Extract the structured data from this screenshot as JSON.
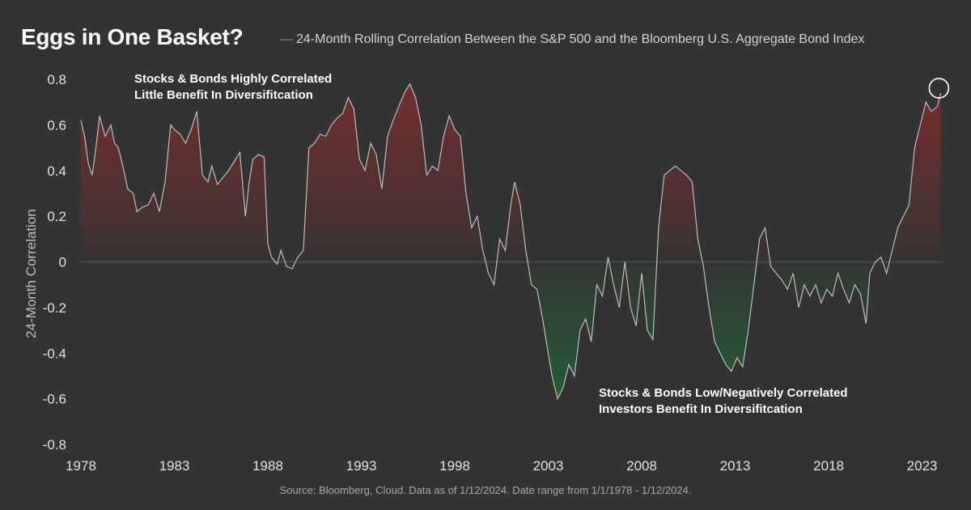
{
  "header": {
    "title": "Eggs in One Basket?",
    "subtitle_dash": "—",
    "subtitle": "24-Month Rolling Correlation Between the S&P 500 and the Bloomberg U.S. Aggregate Bond Index"
  },
  "footer": {
    "source": "Source: Bloomberg, Cloud. Data as of 1/12/2024. Date range from 1/1/1978 - 1/12/2024."
  },
  "colors": {
    "background": "#333333",
    "line": "#bdbdbd",
    "positive_fill": "#7a2e2c",
    "negative_fill": "#1e6b35",
    "zero_line": "#5a5a5a"
  },
  "chart_data": {
    "type": "area",
    "title": "24-Month Rolling Correlation Between the S&P 500 and the Bloomberg U.S. Aggregate Bond Index",
    "xlabel": "",
    "ylabel": "24-Month Correlation",
    "xlim": [
      1978.0,
      2024.1
    ],
    "ylim": [
      -0.8,
      0.8
    ],
    "xticks": [
      "1978",
      "1983",
      "1988",
      "1993",
      "1998",
      "2003",
      "2008",
      "2013",
      "2018",
      "2023"
    ],
    "yticks": [
      "0.8",
      "0.6",
      "0.4",
      "0.2",
      "0",
      "-0.2",
      "-0.4",
      "-0.6",
      "-0.8"
    ],
    "grid": false,
    "annotations": [
      {
        "lines": [
          "Stocks & Bonds Highly Correlated",
          "Little Benefit In Diversifitcation"
        ]
      },
      {
        "lines": [
          "Stocks & Bonds Low/Negatively Correlated",
          "Investors Benefit In Diversifitcation"
        ]
      }
    ],
    "highlight_point": {
      "x": 2023.9,
      "y": 0.74
    },
    "series": [
      {
        "x": [
          1978.0,
          1978.2,
          1978.4,
          1978.6,
          1978.8,
          1979.0,
          1979.3,
          1979.6,
          1979.8,
          1980.0,
          1980.3,
          1980.5,
          1980.8,
          1981.0,
          1981.3,
          1981.6,
          1981.9,
          1982.2,
          1982.5,
          1982.8,
          1983.0,
          1983.3,
          1983.6,
          1983.9,
          1984.2,
          1984.5,
          1984.8,
          1985.0,
          1985.3,
          1985.6,
          1985.9,
          1986.2,
          1986.5,
          1986.8,
          1987.0,
          1987.2,
          1987.5,
          1987.8,
          1988.0,
          1988.2,
          1988.5,
          1988.7,
          1989.0,
          1989.3,
          1989.6,
          1989.9,
          1990.2,
          1990.5,
          1990.8,
          1991.1,
          1991.4,
          1991.7,
          1992.0,
          1992.3,
          1992.6,
          1992.9,
          1993.2,
          1993.5,
          1993.8,
          1994.1,
          1994.4,
          1994.7,
          1995.0,
          1995.3,
          1995.6,
          1995.9,
          1996.2,
          1996.5,
          1996.8,
          1997.1,
          1997.4,
          1997.7,
          1998.0,
          1998.3,
          1998.6,
          1998.9,
          1999.2,
          1999.5,
          1999.8,
          2000.1,
          2000.4,
          2000.7,
          2001.0,
          2001.2,
          2001.5,
          2001.8,
          2002.1,
          2002.4,
          2002.7,
          2003.0,
          2003.2,
          2003.5,
          2003.8,
          2004.1,
          2004.4,
          2004.7,
          2005.0,
          2005.3,
          2005.6,
          2005.9,
          2006.2,
          2006.5,
          2006.8,
          2007.1,
          2007.4,
          2007.7,
          2008.0,
          2008.3,
          2008.6,
          2008.9,
          2009.2,
          2009.5,
          2009.8,
          2010.1,
          2010.4,
          2010.7,
          2011.0,
          2011.3,
          2011.6,
          2011.9,
          2012.2,
          2012.5,
          2012.8,
          2013.1,
          2013.4,
          2013.7,
          2014.0,
          2014.3,
          2014.6,
          2014.9,
          2015.2,
          2015.5,
          2015.8,
          2016.1,
          2016.4,
          2016.7,
          2017.0,
          2017.3,
          2017.6,
          2017.9,
          2018.2,
          2018.5,
          2018.8,
          2019.1,
          2019.4,
          2019.7,
          2020.0,
          2020.2,
          2020.5,
          2020.8,
          2021.1,
          2021.4,
          2021.7,
          2022.0,
          2022.3,
          2022.6,
          2022.9,
          2023.2,
          2023.5,
          2023.8,
          2024.0
        ],
        "y": [
          0.62,
          0.55,
          0.43,
          0.38,
          0.5,
          0.64,
          0.55,
          0.6,
          0.52,
          0.5,
          0.4,
          0.32,
          0.3,
          0.22,
          0.24,
          0.25,
          0.3,
          0.22,
          0.35,
          0.6,
          0.58,
          0.56,
          0.52,
          0.58,
          0.66,
          0.38,
          0.35,
          0.42,
          0.34,
          0.37,
          0.4,
          0.44,
          0.48,
          0.2,
          0.35,
          0.45,
          0.47,
          0.46,
          0.08,
          0.02,
          -0.01,
          0.05,
          -0.02,
          -0.03,
          0.02,
          0.05,
          0.5,
          0.52,
          0.56,
          0.55,
          0.6,
          0.63,
          0.65,
          0.72,
          0.67,
          0.45,
          0.4,
          0.52,
          0.47,
          0.32,
          0.55,
          0.62,
          0.68,
          0.74,
          0.78,
          0.72,
          0.6,
          0.38,
          0.42,
          0.4,
          0.55,
          0.64,
          0.58,
          0.55,
          0.3,
          0.15,
          0.2,
          0.05,
          -0.05,
          -0.1,
          0.1,
          0.05,
          0.25,
          0.35,
          0.25,
          0.05,
          -0.1,
          -0.12,
          -0.25,
          -0.4,
          -0.5,
          -0.6,
          -0.55,
          -0.45,
          -0.5,
          -0.3,
          -0.25,
          -0.35,
          -0.1,
          -0.15,
          0.02,
          -0.1,
          -0.2,
          0.0,
          -0.2,
          -0.28,
          -0.05,
          -0.3,
          -0.34,
          0.15,
          0.38,
          0.4,
          0.42,
          0.4,
          0.38,
          0.35,
          0.1,
          -0.02,
          -0.2,
          -0.35,
          -0.4,
          -0.45,
          -0.48,
          -0.42,
          -0.46,
          -0.3,
          -0.1,
          0.1,
          0.15,
          -0.02,
          -0.05,
          -0.08,
          -0.12,
          -0.05,
          -0.2,
          -0.1,
          -0.15,
          -0.1,
          -0.18,
          -0.12,
          -0.15,
          -0.05,
          -0.12,
          -0.18,
          -0.1,
          -0.14,
          -0.27,
          -0.05,
          0.0,
          0.02,
          -0.05,
          0.05,
          0.15,
          0.2,
          0.25,
          0.5,
          0.6,
          0.7,
          0.66,
          0.68,
          0.74
        ]
      }
    ]
  }
}
